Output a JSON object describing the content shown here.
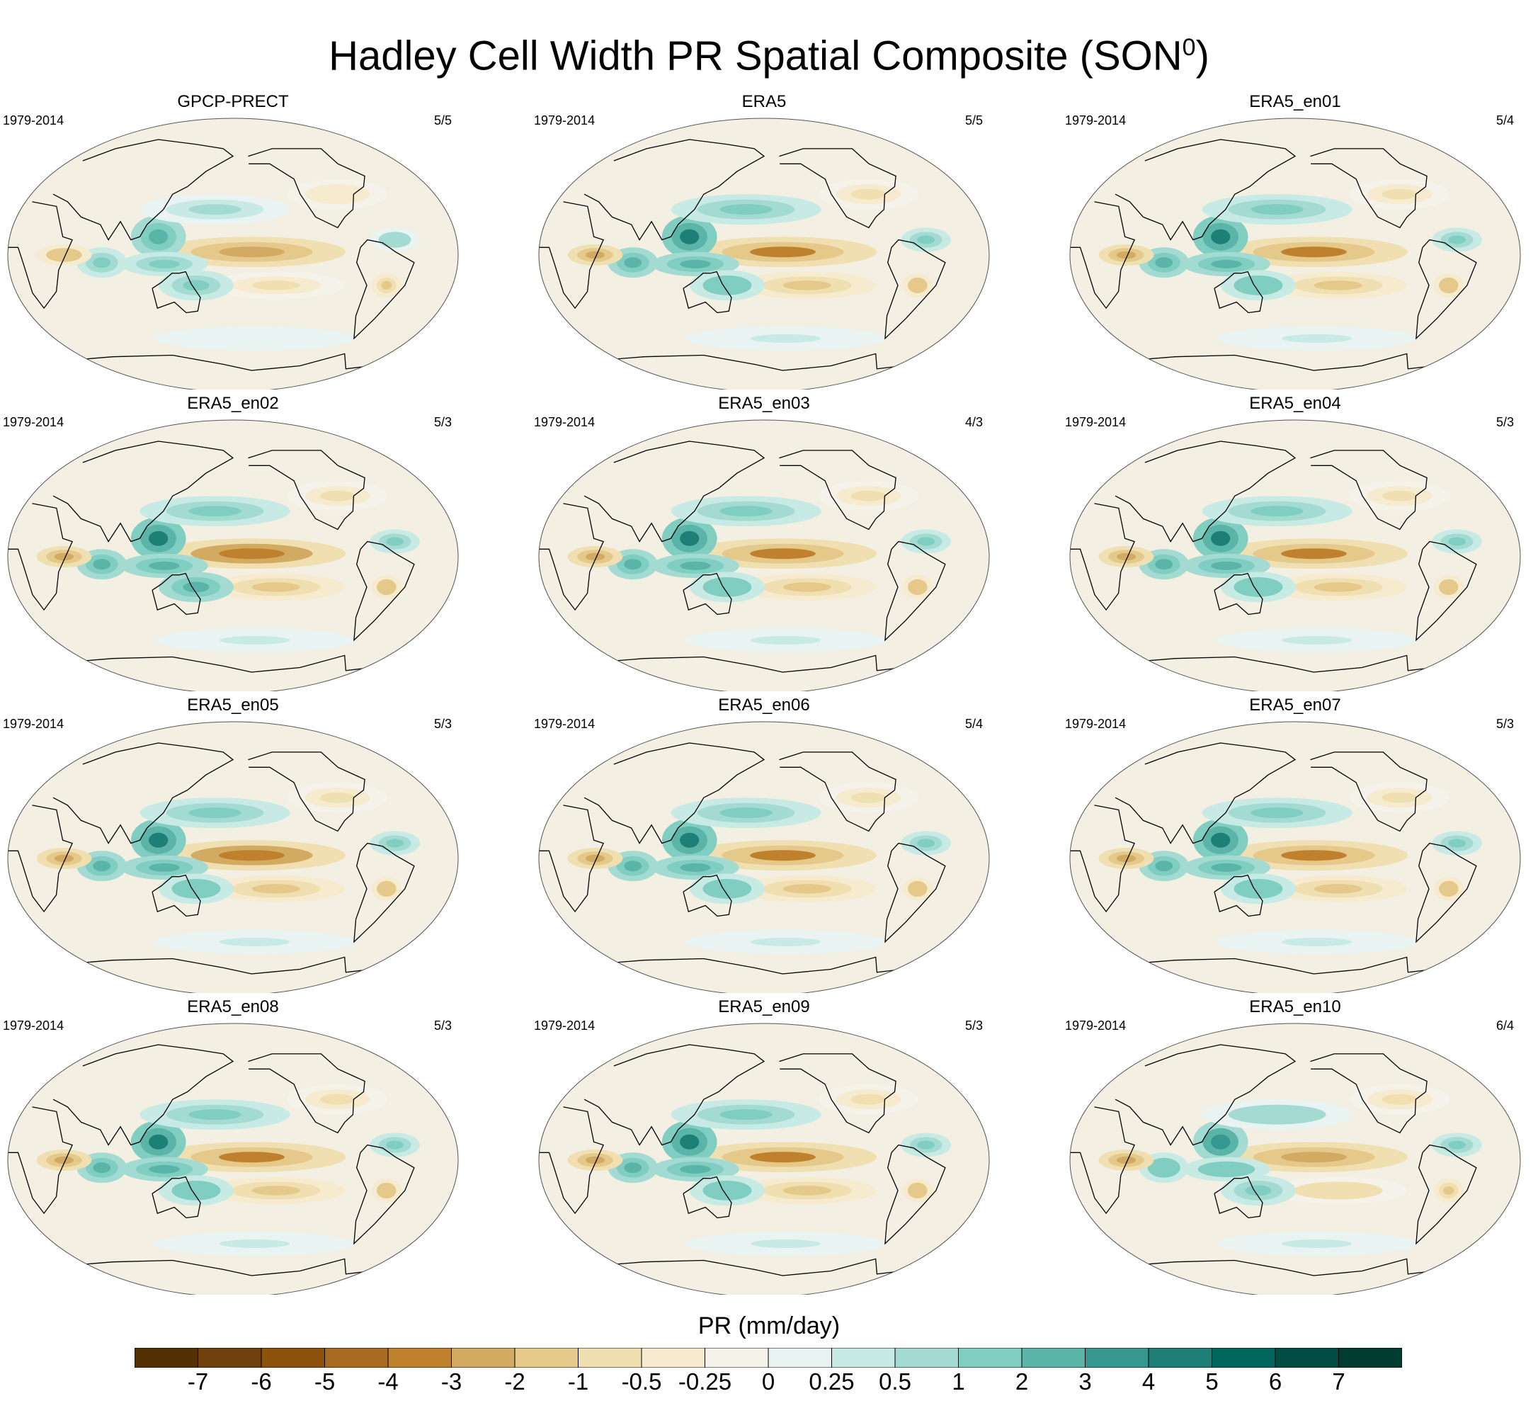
{
  "title_prefix": "Hadley Cell Width PR Spatial Composite (SON",
  "title_sup": "0",
  "title_suffix": ")",
  "chart_data": {
    "type": "heatmap",
    "variable_label": "PR (mm/day)",
    "projection": "Robinson, Pacific-centered",
    "contour_levels": [
      "-7",
      "-6",
      "-5",
      "-4",
      "-3",
      "-2",
      "-1",
      "-0.5",
      "-0.25",
      "0",
      "0.25",
      "0.5",
      "1",
      "2",
      "3",
      "4",
      "5",
      "6",
      "7"
    ],
    "colors": [
      "#543005",
      "#6f3f0c",
      "#8c510a",
      "#a86a21",
      "#bf812d",
      "#d3aa61",
      "#e4c98b",
      "#f0dfb0",
      "#f6ebcf",
      "#f5f2ea",
      "#e9f3f1",
      "#c7eae5",
      "#a3dbd3",
      "#80cdc1",
      "#5ab4a8",
      "#35978f",
      "#1d7f76",
      "#01665e",
      "#014d44",
      "#003c30"
    ],
    "panels": [
      {
        "title": "GPCP-PRECT",
        "period": "1979-2014",
        "count": "5/5",
        "intensity": 0.62
      },
      {
        "title": "ERA5",
        "period": "1979-2014",
        "count": "5/5",
        "intensity": 0.92
      },
      {
        "title": "ERA5_en01",
        "period": "1979-2014",
        "count": "5/4",
        "intensity": 0.9
      },
      {
        "title": "ERA5_en02",
        "period": "1979-2014",
        "count": "5/3",
        "intensity": 1.0
      },
      {
        "title": "ERA5_en03",
        "period": "1979-2014",
        "count": "4/3",
        "intensity": 0.95
      },
      {
        "title": "ERA5_en04",
        "period": "1979-2014",
        "count": "5/3",
        "intensity": 0.95
      },
      {
        "title": "ERA5_en05",
        "period": "1979-2014",
        "count": "5/3",
        "intensity": 0.97
      },
      {
        "title": "ERA5_en06",
        "period": "1979-2014",
        "count": "5/4",
        "intensity": 0.9
      },
      {
        "title": "ERA5_en07",
        "period": "1979-2014",
        "count": "5/3",
        "intensity": 0.95
      },
      {
        "title": "ERA5_en08",
        "period": "1979-2014",
        "count": "5/3",
        "intensity": 0.93
      },
      {
        "title": "ERA5_en09",
        "period": "1979-2014",
        "count": "5/3",
        "intensity": 0.95
      },
      {
        "title": "ERA5_en10",
        "period": "1979-2014",
        "count": "6/4",
        "intensity": 0.75
      }
    ]
  }
}
